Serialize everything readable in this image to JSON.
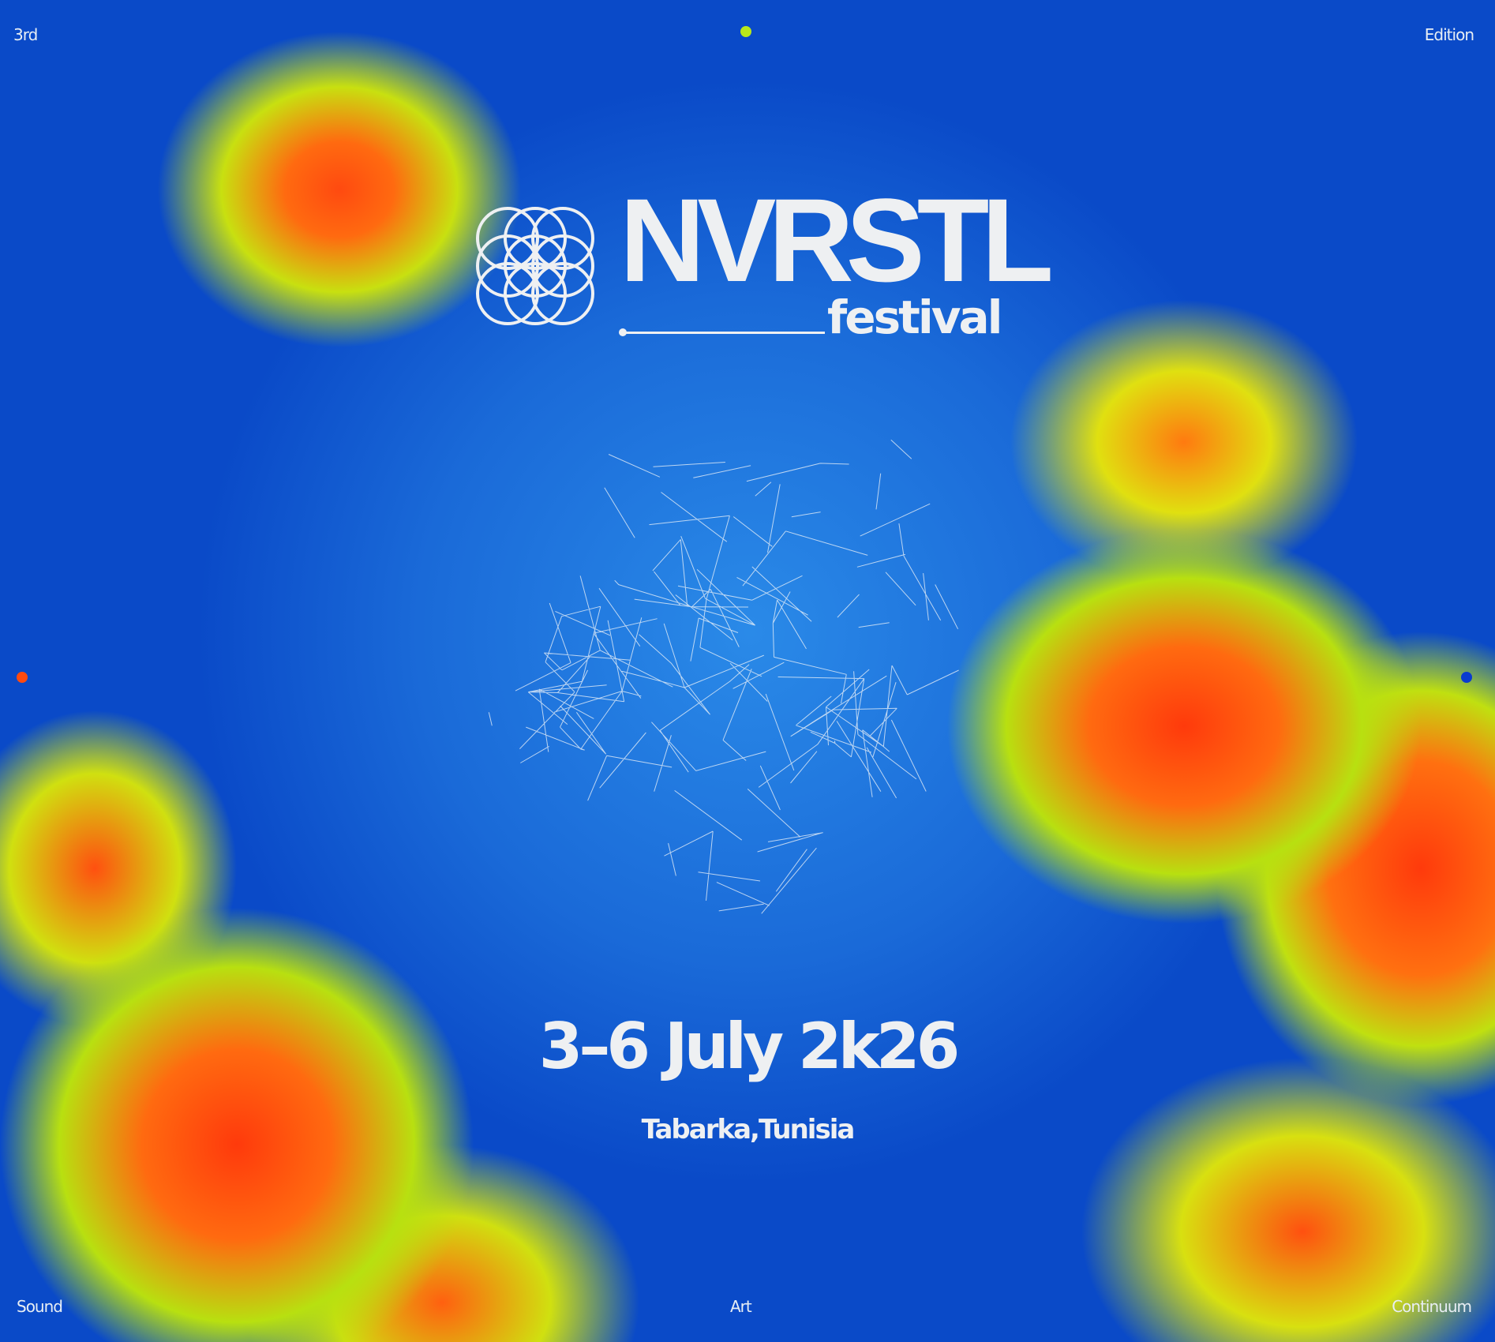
{
  "corners": {
    "top_left": "3rd",
    "top_right": "Edition",
    "bottom_left": "Sound",
    "bottom_center": "Art",
    "bottom_right": "Continuum"
  },
  "logo": {
    "wordmark": "NVRSTL",
    "sub": "festival"
  },
  "event": {
    "dates": "3–6 July 2k26",
    "location": "Tabarka,Tunisia"
  },
  "colors": {
    "dot_top": "#b8e81a",
    "dot_left": "#ff4a10",
    "dot_right": "#0a3ad0",
    "text": "#eef0f2"
  }
}
